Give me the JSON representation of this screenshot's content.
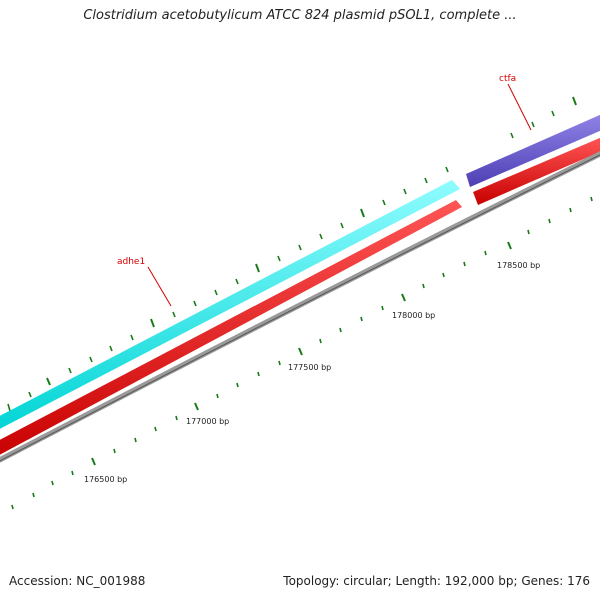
{
  "title": "Clostridium acetobutylicum ATCC 824 plasmid pSOL1, complete ...",
  "footer": {
    "accession": "Accession: NC_001988",
    "stats": "Topology: circular; Length: 192,000 bp; Genes: 176"
  },
  "genes": [
    {
      "name": "adhe1",
      "label_color": "#d40000",
      "track_color": "#00ffff"
    },
    {
      "name": "ctfa",
      "label_color": "#d40000",
      "track_color": "#6a5acd"
    }
  ],
  "ruler_labels": [
    "176500 bp",
    "177000 bp",
    "177500 bp",
    "178000 bp",
    "178500 bp"
  ],
  "colors": {
    "cds_track": "#ff0000",
    "backbone": "#888888",
    "tick": "#1a7a1a",
    "label": "#d40000"
  }
}
